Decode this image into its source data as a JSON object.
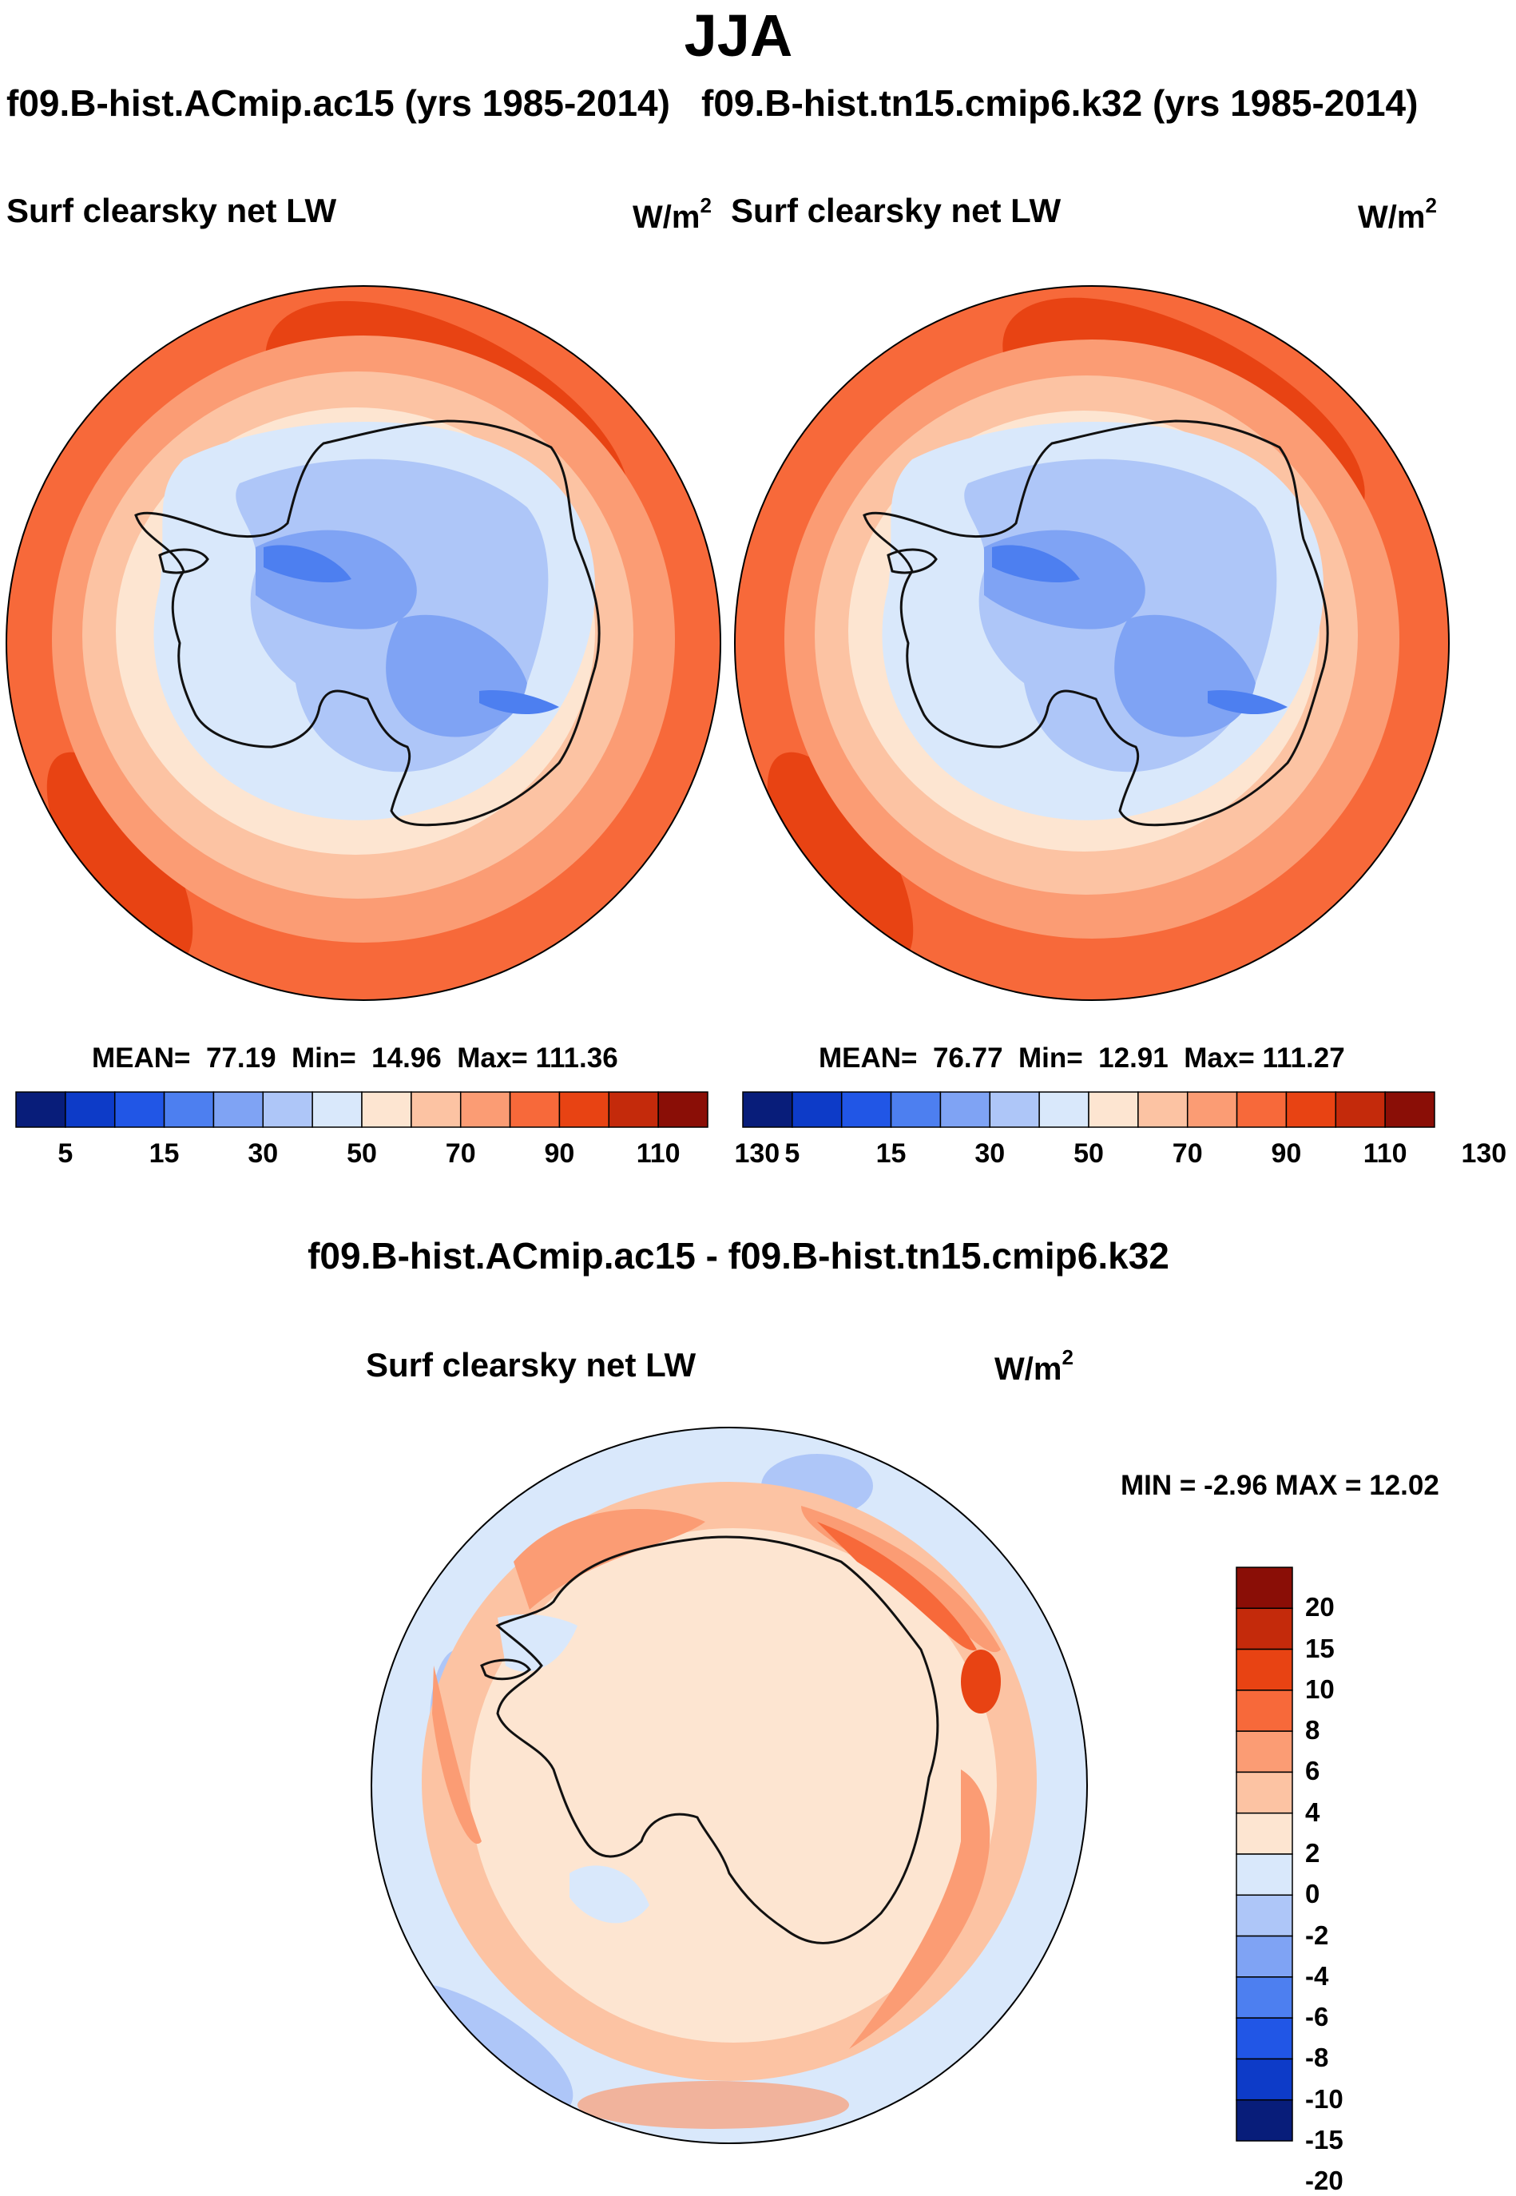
{
  "title": "JJA",
  "panels": [
    {
      "case_title": "f09.B-hist.ACmip.ac15 (yrs 1985-2014)",
      "label": "Surf clearsky net LW",
      "units": "W/m",
      "units_sup": "2",
      "stats": {
        "mean_label": "MEAN=",
        "mean": "77.19",
        "min_label": "Min=",
        "min": "14.96",
        "max_label": "Max=",
        "max": "111.36"
      }
    },
    {
      "case_title": "f09.B-hist.tn15.cmip6.k32 (yrs 1985-2014)",
      "label": "Surf clearsky net LW",
      "units": "W/m",
      "units_sup": "2",
      "stats": {
        "mean_label": "MEAN=",
        "mean": "76.77",
        "min_label": "Min=",
        "min": "12.91",
        "max_label": "Max=",
        "max": "111.27"
      }
    }
  ],
  "diff": {
    "title": "f09.B-hist.ACmip.ac15 - f09.B-hist.tn15.cmip6.k32",
    "label": "Surf clearsky net LW",
    "units": "W/m",
    "units_sup": "2",
    "minmax": "MIN =  -2.96 MAX =  12.02"
  },
  "colors": {
    "abs_scale": [
      "#081d7a",
      "#0d3bc8",
      "#2156e6",
      "#4d7ff0",
      "#7fa3f4",
      "#aec6f8",
      "#d9e8fb",
      "#fde5d1",
      "#fcc3a3",
      "#fb9c74",
      "#f7693a",
      "#e84313",
      "#c42a0b",
      "#8a0e06"
    ],
    "diff_scale": [
      "#081d7a",
      "#0d3bc8",
      "#2156e6",
      "#4d7ff0",
      "#7fa3f4",
      "#aec6f8",
      "#d9e8fb",
      "#fde5d1",
      "#fcc3a3",
      "#fb9c74",
      "#f7693a",
      "#e84313",
      "#c42a0b",
      "#8a0e06"
    ],
    "land_line": "#111111"
  },
  "chart_data": [
    {
      "type": "heatmap",
      "subtype": "polar-stereographic filled contour",
      "title": "Surf clearsky net LW",
      "case": "f09.B-hist.ACmip.ac15 (yrs 1985-2014)",
      "season": "JJA",
      "units": "W/m2",
      "mean": 77.19,
      "min": 14.96,
      "max": 111.36,
      "colorbar": {
        "levels": [
          5,
          10,
          15,
          20,
          30,
          40,
          50,
          60,
          70,
          80,
          90,
          100,
          110,
          120,
          130
        ],
        "tick_labels": [
          "5",
          "15",
          "30",
          "50",
          "70",
          "90",
          "110",
          "130"
        ]
      }
    },
    {
      "type": "heatmap",
      "subtype": "polar-stereographic filled contour",
      "title": "Surf clearsky net LW",
      "case": "f09.B-hist.tn15.cmip6.k32 (yrs 1985-2014)",
      "season": "JJA",
      "units": "W/m2",
      "mean": 76.77,
      "min": 12.91,
      "max": 111.27,
      "colorbar": {
        "levels": [
          5,
          10,
          15,
          20,
          30,
          40,
          50,
          60,
          70,
          80,
          90,
          100,
          110,
          120,
          130
        ],
        "tick_labels": [
          "5",
          "15",
          "30",
          "50",
          "70",
          "90",
          "110",
          "130"
        ]
      }
    },
    {
      "type": "heatmap",
      "subtype": "polar-stereographic filled contour (difference)",
      "title": "Surf clearsky net LW",
      "case": "f09.B-hist.ACmip.ac15 - f09.B-hist.tn15.cmip6.k32",
      "season": "JJA",
      "units": "W/m2",
      "min": -2.96,
      "max": 12.02,
      "colorbar": {
        "levels": [
          -20,
          -15,
          -10,
          -8,
          -6,
          -4,
          -2,
          0,
          2,
          4,
          6,
          8,
          10,
          15,
          20
        ],
        "tick_labels": [
          "20",
          "15",
          "10",
          "8",
          "6",
          "4",
          "2",
          "0",
          "-2",
          "-4",
          "-6",
          "-8",
          "-10",
          "-15",
          "-20"
        ]
      }
    }
  ]
}
